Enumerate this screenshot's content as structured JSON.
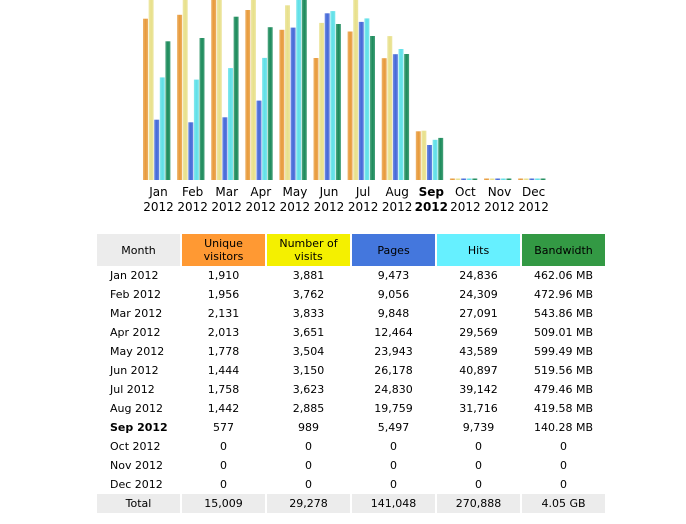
{
  "chart_data": {
    "type": "bar",
    "categories": [
      "Jan",
      "Feb",
      "Mar",
      "Apr",
      "May",
      "Jun",
      "Jul",
      "Aug",
      "Sep",
      "Oct",
      "Nov",
      "Dec"
    ],
    "years": [
      "2012",
      "2012",
      "2012",
      "2012",
      "2012",
      "2012",
      "2012",
      "2012",
      "2012",
      "2012",
      "2012",
      "2012"
    ],
    "current_index": 8,
    "series": [
      {
        "name": "Unique visitors",
        "color": "#e89a3a",
        "values": [
          1910,
          1956,
          2131,
          2013,
          1778,
          1444,
          1758,
          1442,
          577,
          0,
          0,
          0
        ]
      },
      {
        "name": "Number of visits",
        "color": "#e8e08a",
        "values": [
          3881,
          3762,
          3833,
          3651,
          3504,
          3150,
          3623,
          2885,
          989,
          0,
          0,
          0
        ]
      },
      {
        "name": "Pages",
        "color": "#4468d8",
        "values": [
          9473,
          9056,
          9848,
          12464,
          23943,
          26178,
          24830,
          19759,
          5497,
          0,
          0,
          0
        ]
      },
      {
        "name": "Hits",
        "color": "#5ee0e8",
        "values": [
          24836,
          24309,
          27091,
          29569,
          43589,
          40897,
          39142,
          31716,
          9739,
          0,
          0,
          0
        ]
      },
      {
        "name": "Bandwidth",
        "color": "#1a8a5a",
        "values": [
          462.06,
          472.96,
          543.86,
          509.01,
          599.49,
          519.56,
          479.46,
          419.58,
          140.28,
          0,
          0,
          0
        ]
      }
    ]
  },
  "table": {
    "headers": {
      "month": "Month",
      "unique": "Unique visitors",
      "visits": "Number of visits",
      "pages": "Pages",
      "hits": "Hits",
      "bandwidth": "Bandwidth"
    },
    "header_colors": {
      "month": "#ececec",
      "unique": "#ff9933",
      "visits": "#f4f000",
      "pages": "#4477dd",
      "hits": "#66f0ff",
      "bandwidth": "#339944"
    },
    "rows": [
      {
        "month": "Jan 2012",
        "unique": "1,910",
        "visits": "3,881",
        "pages": "9,473",
        "hits": "24,836",
        "bandwidth": "462.06 MB"
      },
      {
        "month": "Feb 2012",
        "unique": "1,956",
        "visits": "3,762",
        "pages": "9,056",
        "hits": "24,309",
        "bandwidth": "472.96 MB"
      },
      {
        "month": "Mar 2012",
        "unique": "2,131",
        "visits": "3,833",
        "pages": "9,848",
        "hits": "27,091",
        "bandwidth": "543.86 MB"
      },
      {
        "month": "Apr 2012",
        "unique": "2,013",
        "visits": "3,651",
        "pages": "12,464",
        "hits": "29,569",
        "bandwidth": "509.01 MB"
      },
      {
        "month": "May 2012",
        "unique": "1,778",
        "visits": "3,504",
        "pages": "23,943",
        "hits": "43,589",
        "bandwidth": "599.49 MB"
      },
      {
        "month": "Jun 2012",
        "unique": "1,444",
        "visits": "3,150",
        "pages": "26,178",
        "hits": "40,897",
        "bandwidth": "519.56 MB"
      },
      {
        "month": "Jul 2012",
        "unique": "1,758",
        "visits": "3,623",
        "pages": "24,830",
        "hits": "39,142",
        "bandwidth": "479.46 MB"
      },
      {
        "month": "Aug 2012",
        "unique": "1,442",
        "visits": "2,885",
        "pages": "19,759",
        "hits": "31,716",
        "bandwidth": "419.58 MB"
      },
      {
        "month": "Sep 2012",
        "unique": "577",
        "visits": "989",
        "pages": "5,497",
        "hits": "9,739",
        "bandwidth": "140.28 MB",
        "current": true
      },
      {
        "month": "Oct 2012",
        "unique": "0",
        "visits": "0",
        "pages": "0",
        "hits": "0",
        "bandwidth": "0"
      },
      {
        "month": "Nov 2012",
        "unique": "0",
        "visits": "0",
        "pages": "0",
        "hits": "0",
        "bandwidth": "0"
      },
      {
        "month": "Dec 2012",
        "unique": "0",
        "visits": "0",
        "pages": "0",
        "hits": "0",
        "bandwidth": "0"
      }
    ],
    "total": {
      "month": "Total",
      "unique": "15,009",
      "visits": "29,278",
      "pages": "141,048",
      "hits": "270,888",
      "bandwidth": "4.05 GB"
    }
  }
}
